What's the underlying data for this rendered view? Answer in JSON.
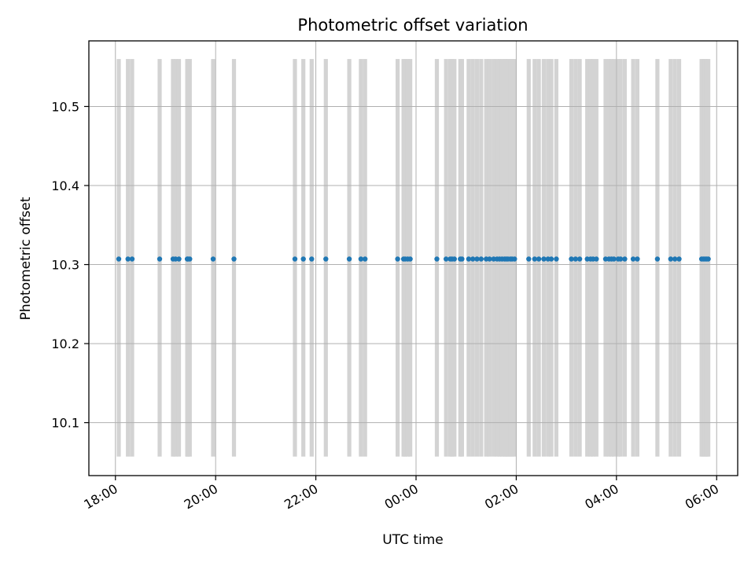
{
  "chart_data": {
    "type": "scatter",
    "title": "Photometric offset variation",
    "xlabel": "UTC time",
    "ylabel": "Photometric offset",
    "x_tick_labels": [
      "18:00",
      "20:00",
      "22:00",
      "00:00",
      "02:00",
      "04:00",
      "06:00"
    ],
    "y_tick_labels": [
      "10.1",
      "10.2",
      "10.3",
      "10.4",
      "10.5"
    ],
    "y_ticks": [
      10.1,
      10.2,
      10.3,
      10.4,
      10.5
    ],
    "x_ticks_hours": [
      18,
      20,
      22,
      24,
      26,
      28,
      30
    ],
    "xlim_hours": [
      17.47,
      30.42
    ],
    "ylim": [
      10.033,
      10.583
    ],
    "grid": true,
    "band_color": "#d3d3d3",
    "point_color": "#1f77b4",
    "band_y_range": [
      10.057,
      10.56
    ],
    "series": [
      {
        "time": [
          "18:04",
          "18:15",
          "18:20",
          "18:53",
          "19:09",
          "19:12",
          "19:16",
          "19:26",
          "19:27",
          "19:29",
          "19:57",
          "20:22",
          "21:35",
          "21:45",
          "21:55",
          "22:12",
          "22:40",
          "22:54",
          "22:59",
          "23:38",
          "23:45",
          "23:47",
          "23:50",
          "23:53",
          "00:25",
          "00:36",
          "00:41",
          "00:43",
          "00:46",
          "00:53",
          "00:55",
          "01:03",
          "01:08",
          "01:13",
          "01:18",
          "01:24",
          "01:28",
          "01:33",
          "01:37",
          "01:40",
          "01:43",
          "01:46",
          "01:48",
          "01:50",
          "01:53",
          "01:55",
          "01:58",
          "02:15",
          "02:22",
          "02:27",
          "02:33",
          "02:38",
          "02:42",
          "02:48",
          "03:06",
          "03:11",
          "03:16",
          "03:25",
          "03:29",
          "03:32",
          "03:36",
          "03:47",
          "03:51",
          "03:54",
          "03:57",
          "04:02",
          "04:05",
          "04:10",
          "04:20",
          "04:25",
          "04:49",
          "05:05",
          "05:10",
          "05:15",
          "05:42",
          "05:44",
          "05:46",
          "05:48",
          "05:50"
        ],
        "values": [
          10.307,
          10.307,
          10.307,
          10.307,
          10.307,
          10.307,
          10.307,
          10.307,
          10.307,
          10.307,
          10.307,
          10.307,
          10.307,
          10.307,
          10.307,
          10.307,
          10.307,
          10.307,
          10.307,
          10.307,
          10.307,
          10.307,
          10.307,
          10.307,
          10.307,
          10.307,
          10.307,
          10.307,
          10.307,
          10.307,
          10.307,
          10.307,
          10.307,
          10.307,
          10.307,
          10.307,
          10.307,
          10.307,
          10.307,
          10.307,
          10.307,
          10.307,
          10.307,
          10.307,
          10.307,
          10.307,
          10.307,
          10.307,
          10.307,
          10.307,
          10.307,
          10.307,
          10.307,
          10.307,
          10.307,
          10.307,
          10.307,
          10.307,
          10.307,
          10.307,
          10.307,
          10.307,
          10.307,
          10.307,
          10.307,
          10.307,
          10.307,
          10.307,
          10.307,
          10.307,
          10.307,
          10.307,
          10.307,
          10.307,
          10.307,
          10.307,
          10.307,
          10.307,
          10.307
        ]
      }
    ]
  }
}
